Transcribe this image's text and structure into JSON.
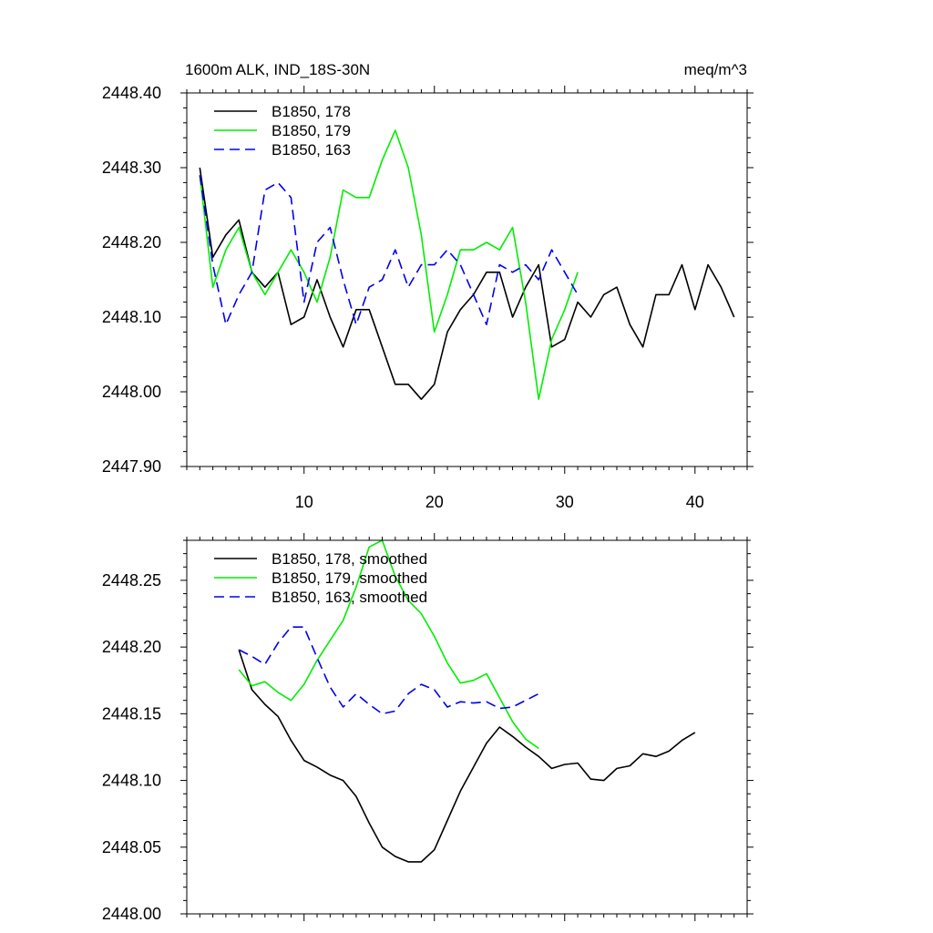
{
  "chart_data": [
    {
      "type": "line",
      "title_left": "1600m ALK, IND_18S-30N",
      "title_right": "meq/m^3",
      "xlim": [
        1,
        44
      ],
      "ylim": [
        2447.9,
        2448.4
      ],
      "yticks": [
        2447.9,
        2448.0,
        2448.1,
        2448.2,
        2448.3,
        2448.4
      ],
      "ytick_labels": [
        "2447.90",
        "2448.00",
        "2448.10",
        "2448.20",
        "2448.30",
        "2448.40"
      ],
      "xticks": [
        10,
        20,
        30,
        40
      ],
      "xtick_labels": [
        "10",
        "20",
        "30",
        "40"
      ],
      "legend": "top-left",
      "series": [
        {
          "name": "B1850, 178",
          "color": "#000000",
          "dash": "solid",
          "x": [
            2,
            3,
            4,
            5,
            6,
            7,
            8,
            9,
            10,
            11,
            12,
            13,
            14,
            15,
            16,
            17,
            18,
            19,
            20,
            21,
            22,
            23,
            24,
            25,
            26,
            27,
            28,
            29,
            30,
            31,
            32,
            33,
            34,
            35,
            36,
            37,
            38,
            39,
            40,
            41,
            42,
            43
          ],
          "y": [
            2448.3,
            2448.18,
            2448.21,
            2448.23,
            2448.16,
            2448.14,
            2448.16,
            2448.09,
            2448.1,
            2448.15,
            2448.1,
            2448.06,
            2448.11,
            2448.11,
            2448.06,
            2448.01,
            2448.01,
            2447.99,
            2448.01,
            2448.08,
            2448.11,
            2448.13,
            2448.16,
            2448.16,
            2448.1,
            2448.14,
            2448.17,
            2448.06,
            2448.07,
            2448.12,
            2448.1,
            2448.13,
            2448.14,
            2448.09,
            2448.06,
            2448.13,
            2448.13,
            2448.17,
            2448.11,
            2448.17,
            2448.14,
            2448.1
          ]
        },
        {
          "name": "B1850, 179",
          "color": "#00ee00",
          "dash": "solid",
          "x": [
            2,
            3,
            4,
            5,
            6,
            7,
            8,
            9,
            10,
            11,
            12,
            13,
            14,
            15,
            16,
            17,
            18,
            19,
            20,
            21,
            22,
            23,
            24,
            25,
            26,
            27,
            28,
            29,
            30,
            31
          ],
          "y": [
            2448.29,
            2448.14,
            2448.19,
            2448.22,
            2448.16,
            2448.13,
            2448.16,
            2448.19,
            2448.16,
            2448.12,
            2448.18,
            2448.27,
            2448.26,
            2448.26,
            2448.31,
            2448.35,
            2448.3,
            2448.21,
            2448.08,
            2448.13,
            2448.19,
            2448.19,
            2448.2,
            2448.19,
            2448.22,
            2448.12,
            2447.99,
            2448.07,
            2448.11,
            2448.16
          ]
        },
        {
          "name": "B1850, 163",
          "color": "#0000ee",
          "dash": "dashed",
          "x": [
            2,
            3,
            4,
            5,
            6,
            7,
            8,
            9,
            10,
            11,
            12,
            13,
            14,
            15,
            16,
            17,
            18,
            19,
            20,
            21,
            22,
            23,
            24,
            25,
            26,
            27,
            28,
            29,
            30,
            31
          ],
          "y": [
            2448.29,
            2448.17,
            2448.09,
            2448.13,
            2448.16,
            2448.27,
            2448.28,
            2448.26,
            2448.12,
            2448.2,
            2448.22,
            2448.15,
            2448.09,
            2448.14,
            2448.15,
            2448.19,
            2448.14,
            2448.17,
            2448.17,
            2448.19,
            2448.17,
            2448.13,
            2448.09,
            2448.17,
            2448.16,
            2448.17,
            2448.15,
            2448.19,
            2448.16,
            2448.13
          ]
        }
      ]
    },
    {
      "type": "line",
      "xlim": [
        1,
        44
      ],
      "ylim": [
        2448.0,
        2448.28
      ],
      "yticks": [
        2448.0,
        2448.05,
        2448.1,
        2448.15,
        2448.2,
        2448.25
      ],
      "ytick_labels": [
        "2448.00",
        "2448.05",
        "2448.10",
        "2448.15",
        "2448.20",
        "2448.25"
      ],
      "xticks": [
        10,
        20,
        30,
        40
      ],
      "legend": "top-left",
      "series": [
        {
          "name": "B1850, 178, smoothed",
          "color": "#000000",
          "dash": "solid",
          "x": [
            5,
            6,
            7,
            8,
            9,
            10,
            11,
            12,
            13,
            14,
            15,
            16,
            17,
            18,
            19,
            20,
            21,
            22,
            23,
            24,
            25,
            26,
            27,
            28,
            29,
            30,
            31,
            32,
            33,
            34,
            35,
            36,
            37,
            38,
            39,
            40
          ],
          "y": [
            2448.198,
            2448.168,
            2448.157,
            2448.148,
            2448.13,
            2448.115,
            2448.11,
            2448.104,
            2448.1,
            2448.088,
            2448.068,
            2448.05,
            2448.043,
            2448.039,
            2448.039,
            2448.048,
            2448.07,
            2448.092,
            2448.11,
            2448.128,
            2448.14,
            2448.133,
            2448.125,
            2448.118,
            2448.109,
            2448.112,
            2448.113,
            2448.101,
            2448.1,
            2448.109,
            2448.111,
            2448.12,
            2448.118,
            2448.122,
            2448.13,
            2448.136
          ]
        },
        {
          "name": "B1850, 179, smoothed",
          "color": "#00ee00",
          "dash": "solid",
          "x": [
            5,
            6,
            7,
            8,
            9,
            10,
            11,
            12,
            13,
            14,
            15,
            16,
            17,
            18,
            19,
            20,
            21,
            22,
            23,
            24,
            25,
            26,
            27,
            28
          ],
          "y": [
            2448.183,
            2448.171,
            2448.174,
            2448.166,
            2448.16,
            2448.172,
            2448.19,
            2448.205,
            2448.22,
            2448.245,
            2448.275,
            2448.28,
            2448.253,
            2448.235,
            2448.225,
            2448.208,
            2448.188,
            2448.173,
            2448.175,
            2448.18,
            2448.162,
            2448.144,
            2448.131,
            2448.124
          ]
        },
        {
          "name": "B1850, 163, smoothed",
          "color": "#0000ee",
          "dash": "dashed",
          "x": [
            5,
            6,
            7,
            8,
            9,
            10,
            11,
            12,
            13,
            14,
            15,
            16,
            17,
            18,
            19,
            20,
            21,
            22,
            23,
            24,
            25,
            26,
            27,
            28
          ],
          "y": [
            2448.198,
            2448.193,
            2448.187,
            2448.203,
            2448.215,
            2448.215,
            2448.192,
            2448.17,
            2448.155,
            2448.165,
            2448.157,
            2448.15,
            2448.152,
            2448.165,
            2448.172,
            2448.168,
            2448.155,
            2448.159,
            2448.158,
            2448.159,
            2448.154,
            2448.155,
            2448.16,
            2448.165
          ]
        }
      ]
    }
  ]
}
